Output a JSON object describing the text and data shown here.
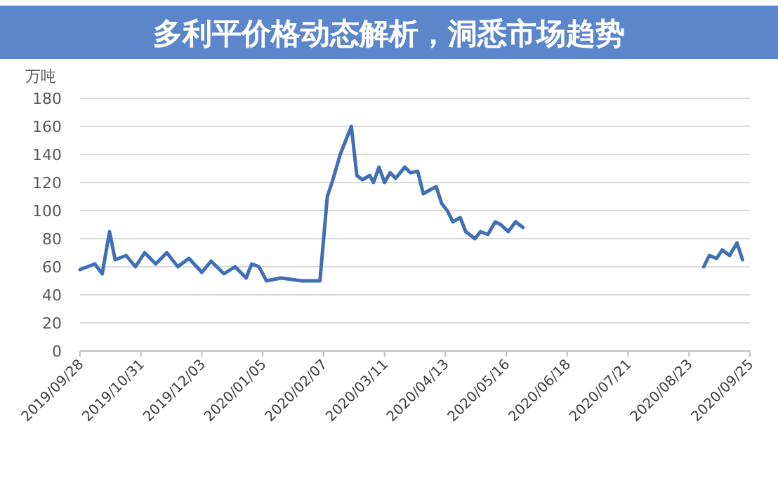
{
  "chart_data": {
    "type": "line",
    "title": "多利平价格动态解析，洞悉市场趋势",
    "ylabel": "万吨",
    "x": [
      "2019-09-28",
      "2019-10-02",
      "2019-10-06",
      "2019-10-10",
      "2019-10-12",
      "2019-10-14",
      "2019-10-17",
      "2019-10-23",
      "2019-10-28",
      "2019-11-02",
      "2019-11-08",
      "2019-11-14",
      "2019-11-20",
      "2019-11-26",
      "2019-12-03",
      "2019-12-08",
      "2019-12-15",
      "2019-12-21",
      "2019-12-27",
      "2019-12-30",
      "2020-01-03",
      "2020-01-07",
      "2020-01-15",
      "2020-01-26",
      "2020-02-05",
      "2020-02-07",
      "2020-02-09",
      "2020-02-12",
      "2020-02-16",
      "2020-02-19",
      "2020-02-22",
      "2020-02-25",
      "2020-02-28",
      "2020-03-03",
      "2020-03-05",
      "2020-03-08",
      "2020-03-11",
      "2020-03-14",
      "2020-03-17",
      "2020-03-22",
      "2020-03-25",
      "2020-03-29",
      "2020-04-01",
      "2020-04-05",
      "2020-04-08",
      "2020-04-11",
      "2020-04-14",
      "2020-04-17",
      "2020-04-21",
      "2020-04-24",
      "2020-04-29",
      "2020-05-02",
      "2020-05-06",
      "2020-05-10",
      "2020-05-13",
      "2020-05-17",
      "2020-05-21",
      "2020-05-25",
      "2020-06-01",
      "2020-08-31",
      "2020-09-03",
      "2020-09-07",
      "2020-09-10",
      "2020-09-14",
      "2020-09-18",
      "2020-09-21"
    ],
    "series": [
      {
        "color": "#3f6fb5",
        "values": [
          58,
          60,
          62,
          55,
          70,
          85,
          65,
          68,
          60,
          70,
          62,
          70,
          60,
          66,
          56,
          64,
          55,
          60,
          52,
          62,
          60,
          50,
          52,
          50,
          50,
          80,
          110,
          122,
          140,
          150,
          160,
          125,
          122,
          125,
          120,
          131,
          120,
          127,
          123,
          131,
          127,
          128,
          112,
          115,
          117,
          105,
          100,
          92,
          95,
          85,
          80,
          85,
          83,
          92,
          90,
          85,
          92,
          88,
          null,
          60,
          68,
          66,
          72,
          68,
          77,
          65
        ]
      }
    ],
    "xlim": [
      "2019-09-28",
      "2020-09-25"
    ],
    "xticks": [
      {
        "value": "2019-09-28",
        "label": "2019/09/28"
      },
      {
        "value": "2019-10-31",
        "label": "2019/10/31"
      },
      {
        "value": "2019-12-03",
        "label": "2019/12/03"
      },
      {
        "value": "2020-01-05",
        "label": "2020/01/05"
      },
      {
        "value": "2020-02-07",
        "label": "2020/02/07"
      },
      {
        "value": "2020-03-11",
        "label": "2020/03/11"
      },
      {
        "value": "2020-04-13",
        "label": "2020/04/13"
      },
      {
        "value": "2020-05-16",
        "label": "2020/05/16"
      },
      {
        "value": "2020-06-18",
        "label": "2020/06/18"
      },
      {
        "value": "2020-07-21",
        "label": "2020/07/21"
      },
      {
        "value": "2020-08-23",
        "label": "2020/08/23"
      },
      {
        "value": "2020-09-25",
        "label": "2020/09/25"
      }
    ],
    "ylim": [
      0,
      180
    ],
    "yticks": [
      0,
      20,
      40,
      60,
      80,
      100,
      120,
      140,
      160,
      180
    ],
    "grid": "y"
  }
}
